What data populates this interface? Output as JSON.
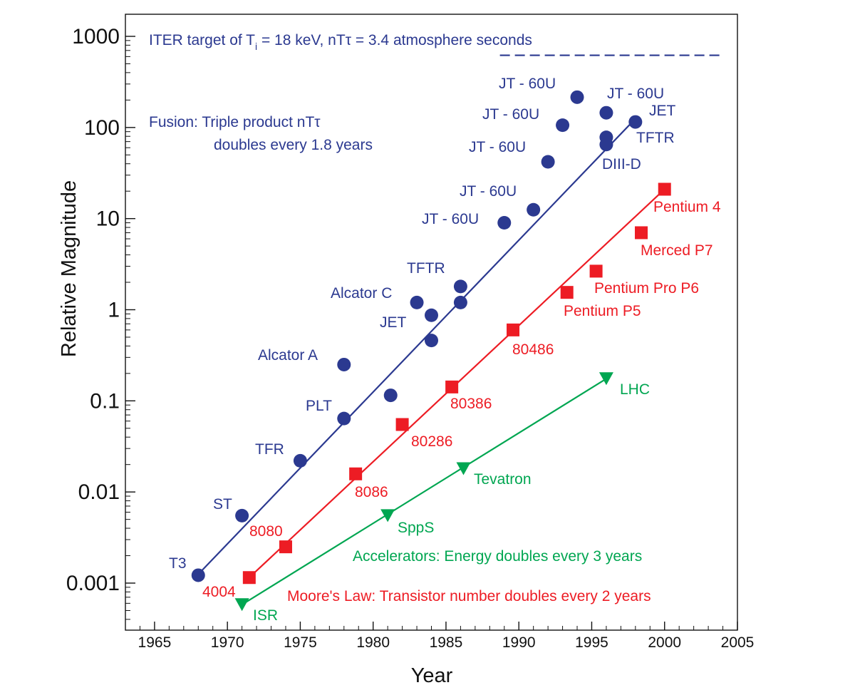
{
  "chart_data": {
    "type": "scatter",
    "title": "",
    "xlabel": "Year",
    "ylabel": "Relative Magnitude",
    "xlim": [
      1963,
      2005
    ],
    "ylim": [
      0.00025,
      2000
    ],
    "yscale": "log",
    "grid": false,
    "legend": "none",
    "x_ticks": [
      1965,
      1970,
      1975,
      1980,
      1985,
      1990,
      1995,
      2000,
      2005
    ],
    "y_ticks": [
      {
        "value": 0.001,
        "label": "0.001"
      },
      {
        "value": 0.01,
        "label": "0.01"
      },
      {
        "value": 0.1,
        "label": "0.1"
      },
      {
        "value": 1,
        "label": "1"
      },
      {
        "value": 10,
        "label": "10"
      },
      {
        "value": 100,
        "label": "100"
      },
      {
        "value": 1000,
        "label": "1000"
      }
    ],
    "reference": {
      "label_parts": [
        "ITER target of T",
        "i",
        " = 18 keV, nT",
        "τ",
        " = 3.4 atmosphere seconds"
      ],
      "y": 620,
      "x_range": [
        1988.7,
        2004
      ],
      "color": "#2b3990"
    },
    "series": [
      {
        "key": "fusion",
        "color": "#2b3990",
        "marker": "circle",
        "trend": {
          "x": [
            1968,
            1998
          ],
          "y": [
            0.00125,
            125
          ]
        },
        "annotation": [
          "Fusion: Triple product nTτ",
          "doubles every 1.8 years"
        ],
        "points": [
          {
            "x": 1968.0,
            "y": 0.00122,
            "label": "T3"
          },
          {
            "x": 1971.0,
            "y": 0.0055,
            "label": "ST"
          },
          {
            "x": 1975.0,
            "y": 0.022,
            "label": "TFR"
          },
          {
            "x": 1978.0,
            "y": 0.064,
            "label": "PLT"
          },
          {
            "x": 1978.0,
            "y": 0.25,
            "label": "Alcator A"
          },
          {
            "x": 1981.2,
            "y": 0.115,
            "label": ""
          },
          {
            "x": 1983.0,
            "y": 1.2,
            "label": "Alcator C"
          },
          {
            "x": 1984.0,
            "y": 0.87,
            "label": "JET"
          },
          {
            "x": 1984.0,
            "y": 0.46,
            "label": ""
          },
          {
            "x": 1986.0,
            "y": 1.8,
            "label": "TFTR"
          },
          {
            "x": 1986.0,
            "y": 1.2,
            "label": ""
          },
          {
            "x": 1989.0,
            "y": 9.0,
            "label": "JT - 60U"
          },
          {
            "x": 1991.0,
            "y": 12.5,
            "label": "JT - 60U"
          },
          {
            "x": 1992.0,
            "y": 42,
            "label": "JT - 60U"
          },
          {
            "x": 1993.0,
            "y": 106,
            "label": "JT - 60U"
          },
          {
            "x": 1994.0,
            "y": 215,
            "label": "JT - 60U"
          },
          {
            "x": 1996.0,
            "y": 145,
            "label": "JT - 60U"
          },
          {
            "x": 1996.0,
            "y": 78,
            "label": "TFTR"
          },
          {
            "x": 1996.0,
            "y": 65,
            "label": "DIII-D"
          },
          {
            "x": 1998.0,
            "y": 115,
            "label": "JET"
          }
        ]
      },
      {
        "key": "moore",
        "color": "#ed1c24",
        "marker": "square",
        "trend": {
          "x": [
            1971.5,
            2000
          ],
          "y": [
            0.00115,
            21
          ]
        },
        "annotation": [
          "Moore's Law: Transistor number doubles every 2 years"
        ],
        "points": [
          {
            "x": 1971.5,
            "y": 0.00115,
            "label": "4004"
          },
          {
            "x": 1974.0,
            "y": 0.0025,
            "label": "8080"
          },
          {
            "x": 1978.8,
            "y": 0.0158,
            "label": "8086"
          },
          {
            "x": 1982.0,
            "y": 0.055,
            "label": "80286"
          },
          {
            "x": 1985.4,
            "y": 0.142,
            "label": "80386"
          },
          {
            "x": 1989.6,
            "y": 0.6,
            "label": "80486"
          },
          {
            "x": 1993.3,
            "y": 1.55,
            "label": "Pentium P5"
          },
          {
            "x": 1995.3,
            "y": 2.65,
            "label": "Pentium Pro P6"
          },
          {
            "x": 1998.4,
            "y": 7.0,
            "label": "Merced P7"
          },
          {
            "x": 2000.0,
            "y": 21,
            "label": "Pentium 4"
          }
        ]
      },
      {
        "key": "accelerators",
        "color": "#00a651",
        "marker": "triangle-down",
        "trend": {
          "x": [
            1971,
            1996
          ],
          "y": [
            0.00058,
            0.175
          ]
        },
        "annotation": [
          "Accelerators: Energy doubles every 3 years"
        ],
        "points": [
          {
            "x": 1971.0,
            "y": 0.00058,
            "label": "ISR"
          },
          {
            "x": 1981.0,
            "y": 0.0055,
            "label": "SppS"
          },
          {
            "x": 1986.2,
            "y": 0.018,
            "label": "Tevatron"
          },
          {
            "x": 1996.0,
            "y": 0.175,
            "label": "LHC"
          }
        ]
      }
    ]
  }
}
